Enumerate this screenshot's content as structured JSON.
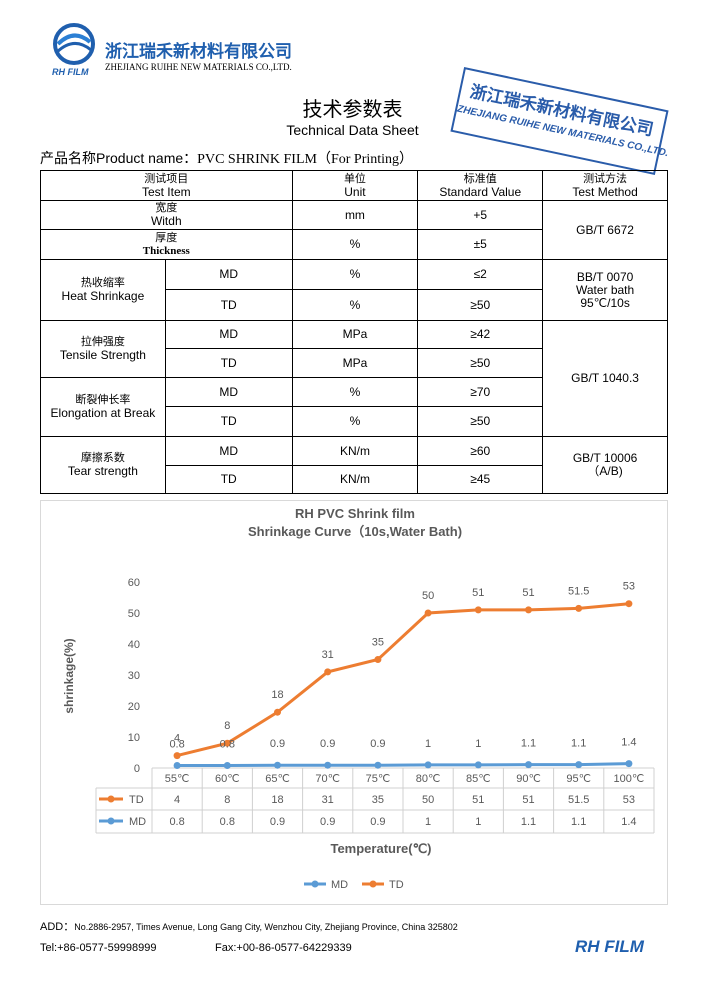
{
  "header": {
    "company_cn": "浙江瑞禾新材料有限公司",
    "company_en": "ZHEJIANG RUIHE NEW MATERIALS CO.,LTD.",
    "logo_text": "RH FILM"
  },
  "stamp": {
    "cn": "浙江瑞禾新材料有限公司",
    "en": "ZHEJIANG RUIHE NEW MATERIALS CO.,LTD."
  },
  "title": "技术参数表",
  "subtitle": "Technical Data Sheet",
  "product": {
    "label": "产品名称Product name：",
    "value": "PVC SHRINK FILM（For Printing）"
  },
  "table": {
    "header": [
      [
        "测试项目",
        "Test Item"
      ],
      [
        "单位",
        "Unit"
      ],
      [
        "标准值",
        "Standard Value"
      ],
      [
        "测试方法",
        "Test Method"
      ]
    ],
    "rows": [
      {
        "item": [
          "宽度",
          "Witdh"
        ],
        "unit": "mm",
        "value": "+5",
        "method": [
          "GB/T 6672"
        ]
      },
      {
        "item": [
          "厚度",
          "Thickness"
        ],
        "unit": "%",
        "value": "±5"
      },
      {
        "item": [
          "热收缩率",
          "Heat Shrinkage"
        ],
        "direction": "MD",
        "unit": "%",
        "value": "≤2",
        "method": [
          "BB/T 0070",
          "Water bath",
          "95℃/10s"
        ]
      },
      {
        "direction": "TD",
        "unit": "%",
        "value": "≥50"
      },
      {
        "item": [
          "拉伸强度",
          "Tensile Strength"
        ],
        "direction": "MD",
        "unit": "MPa",
        "value": "≥42",
        "method": [
          "GB/T 1040.3"
        ]
      },
      {
        "direction": "TD",
        "unit": "MPa",
        "value": "≥50"
      },
      {
        "item": [
          "断裂伸长率",
          "Elongation at Break"
        ],
        "direction": "MD",
        "unit": "%",
        "value": "≥70"
      },
      {
        "direction": "TD",
        "unit": "%",
        "value": "≥50"
      },
      {
        "item": [
          "摩擦系数",
          "Tear strength"
        ],
        "direction": "MD",
        "unit": "KN/m",
        "value": "≥60",
        "method": [
          "GB/T 10006",
          "（A/B)"
        ]
      },
      {
        "direction": "TD",
        "unit": "KN/m",
        "value": "≥45"
      }
    ]
  },
  "chart_data": {
    "type": "line",
    "title": "RH PVC Shrink film",
    "subtitle": "Shrinkage Curve（10s,Water Bath)",
    "y_label": "shrinkage(%)",
    "x_label": "Temperature(℃)",
    "categories": [
      "55℃",
      "60℃",
      "65℃",
      "70℃",
      "75℃",
      "80℃",
      "85℃",
      "90℃",
      "95℃",
      "100℃"
    ],
    "series": [
      {
        "name": "TD",
        "color": "#ed7d31",
        "values": [
          4,
          8,
          18,
          31,
          35,
          50,
          51,
          51,
          51.5,
          53
        ]
      },
      {
        "name": "MD",
        "color": "#5b9bd5",
        "values": [
          0.8,
          0.8,
          0.9,
          0.9,
          0.9,
          1,
          1,
          1.1,
          1.1,
          1.4
        ]
      }
    ],
    "ylim": [
      0,
      60
    ],
    "yticks": [
      0,
      10,
      20,
      30,
      40,
      50,
      60
    ],
    "grid": false,
    "legend": "bottom"
  },
  "footer": {
    "address_label": "ADD：",
    "address": "No.2886-2957, Times Avenue, Long Gang City, Wenzhou City, Zhejiang Province, China 325802",
    "tel": "Tel:+86-0577-59998999",
    "fax": "Fax:+00-86-0577-64229339",
    "brand": "RH FILM"
  }
}
